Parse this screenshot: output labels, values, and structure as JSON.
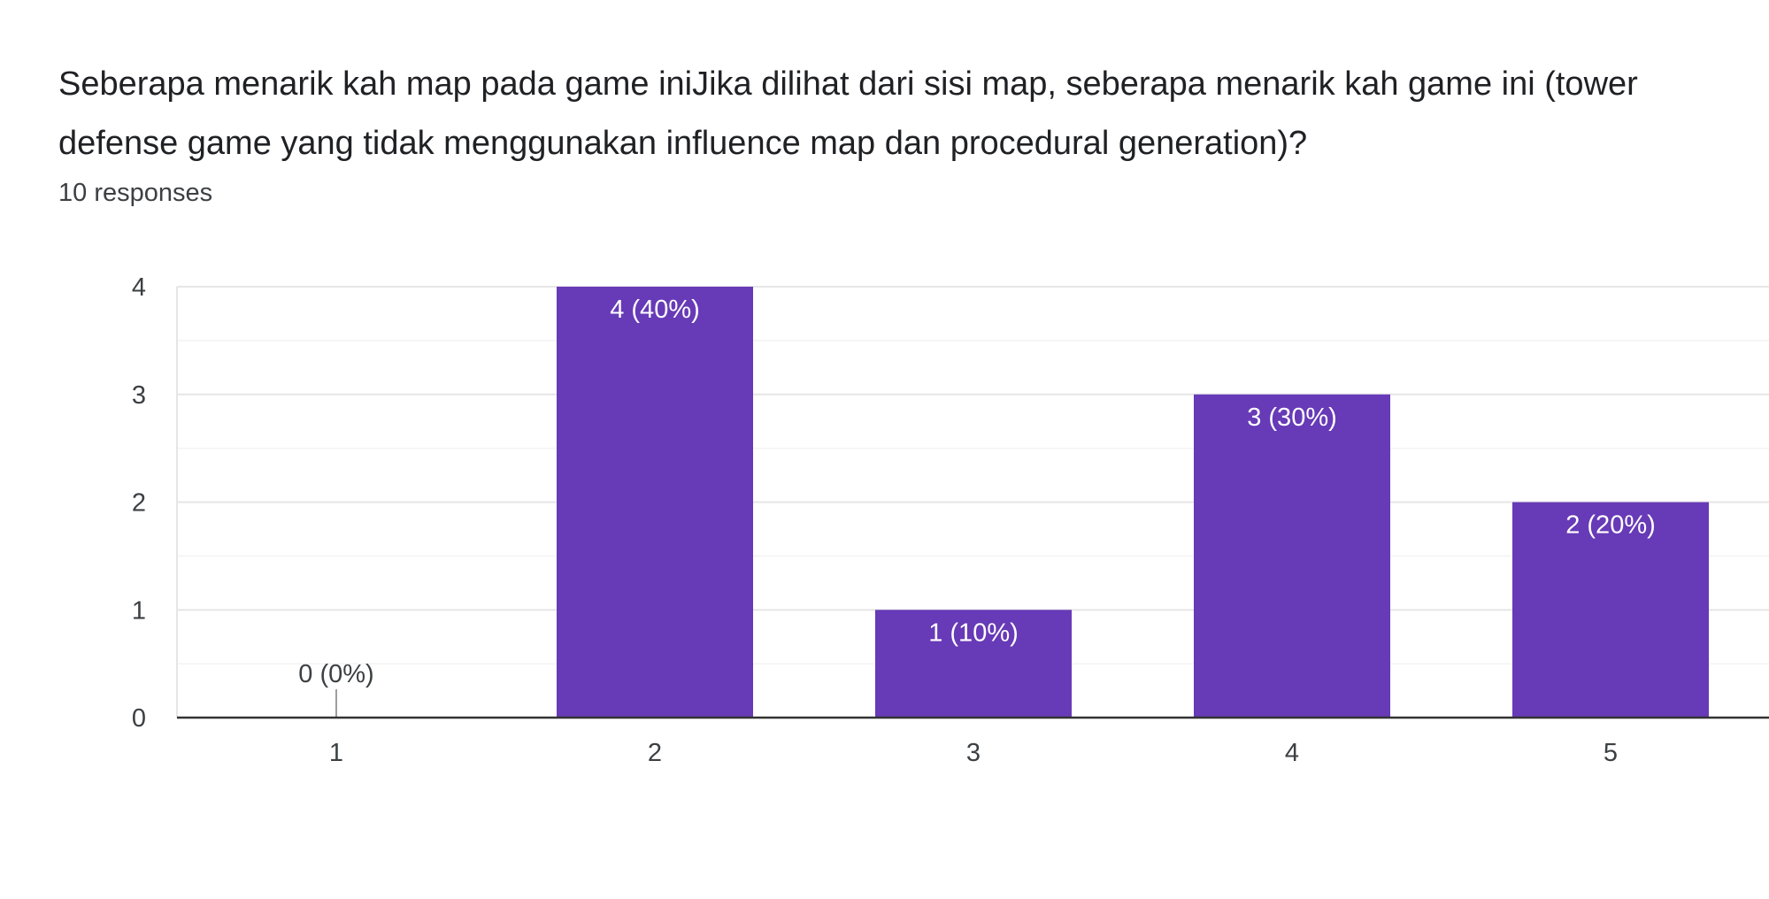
{
  "question": {
    "title": "Seberapa menarik kah map pada game iniJika dilihat dari sisi map, seberapa menarik kah game ini (tower defense game yang tidak menggunakan influence map dan procedural generation)?",
    "responses": "10 responses"
  },
  "colors": {
    "bar": "#673ab7",
    "text": "#202124",
    "axis": "#333333",
    "grid": "#e6e6e6"
  },
  "chart_data": {
    "type": "bar",
    "categories": [
      "1",
      "2",
      "3",
      "4",
      "5"
    ],
    "values": [
      0,
      4,
      1,
      3,
      2
    ],
    "data_labels": [
      "0 (0%)",
      "4 (40%)",
      "1 (10%)",
      "3 (30%)",
      "2 (20%)"
    ],
    "ylim": [
      0,
      4
    ],
    "yticks": [
      0,
      1,
      2,
      3,
      4
    ],
    "xlabel": "",
    "ylabel": "",
    "grid": true
  }
}
